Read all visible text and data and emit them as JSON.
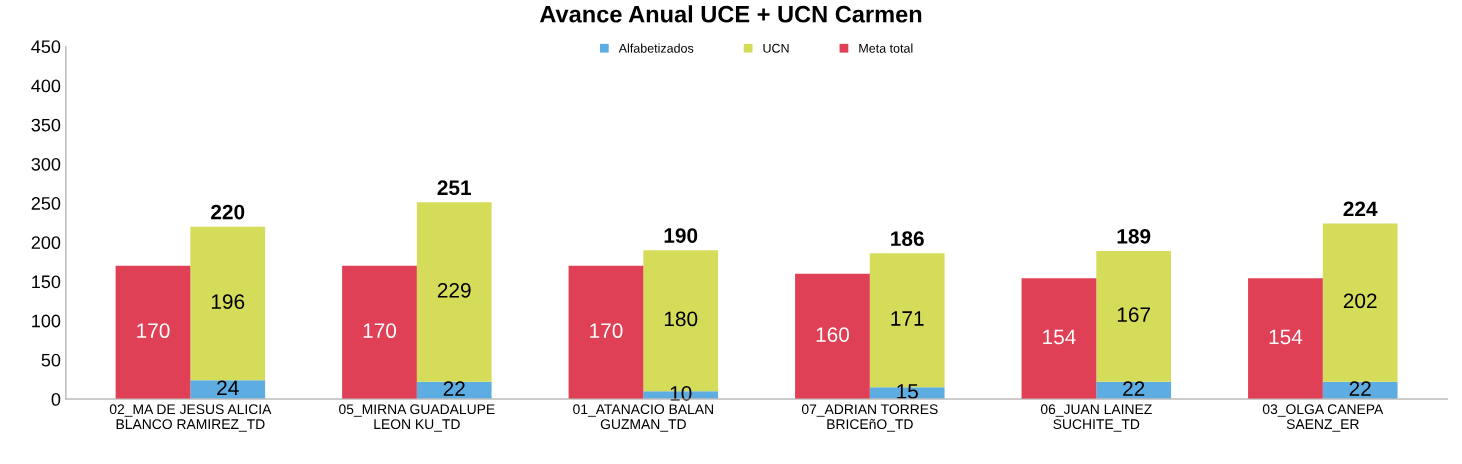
{
  "chart_data": [
    {
      "type": "bar",
      "title": "Avance Anual UCE + UCN Carmen",
      "categories": [
        "02_MA DE JESUS ALICIA\nBLANCO RAMIREZ_TD",
        "05_MIRNA GUADALUPE\nLEON KU_TD",
        "01_ATANACIO BALAN\nGUZMAN_TD",
        "07_ADRIAN TORRES\nBRICEñO_TD",
        "06_JUAN LAINEZ\nSUCHITE_TD",
        "03_OLGA CANEPA\nSAENZ_ER"
      ],
      "series": [
        {
          "name": "Alfabetizados",
          "color": "#5dade2",
          "values": [
            24,
            22,
            10,
            15,
            22,
            22
          ]
        },
        {
          "name": "UCN",
          "color": "#d4dc5a",
          "values": [
            196,
            229,
            180,
            171,
            167,
            202
          ]
        }
      ],
      "stacked": true,
      "totals": [
        "220",
        "251",
        "190",
        "186",
        "189",
        "224"
      ],
      "data_labels": true,
      "ylim": [
        0,
        450
      ],
      "yticks": [
        0,
        50,
        100,
        150,
        200,
        250,
        300,
        350,
        400,
        450
      ],
      "legend": "top"
    },
    {
      "type": "bar",
      "series": [
        {
          "name": "Meta total",
          "color": "#e04056",
          "values": [
            170,
            170,
            170,
            160,
            154,
            154
          ]
        }
      ],
      "data_labels": true,
      "ylim": [
        0,
        450
      ],
      "yticks": [
        0,
        50,
        100,
        150,
        200,
        250,
        300,
        350,
        400,
        450
      ],
      "legend": "top",
      "tick_labels": false
    }
  ]
}
